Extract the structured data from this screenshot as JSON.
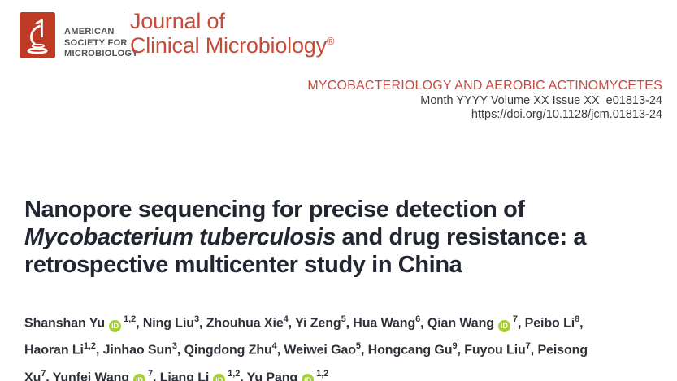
{
  "masthead": {
    "society_lines": [
      "AMERICAN",
      "SOCIETY FOR",
      "MICROBIOLOGY"
    ],
    "journal_line1": "Journal of",
    "journal_line2": "Clinical Microbiology",
    "registered_mark": "®",
    "logo_icon": "microscope-icon",
    "brand_red": "#bf3a24",
    "journal_red": "#c64b38"
  },
  "issue": {
    "section": "MYCOBACTERIOLOGY AND AEROBIC ACTINOMYCETES",
    "citation": "Month YYYY Volume XX Issue XX  e01813-24",
    "doi": "https://doi.org/10.1128/jcm.01813-24",
    "section_red": "#c64b40"
  },
  "article": {
    "title_lines": [
      [
        {
          "text": "Nanopore sequencing for precise detection of",
          "italic": false
        }
      ],
      [
        {
          "text": "Mycobacterium tuberculosis",
          "italic": true
        },
        {
          "text": " and drug resistance: a",
          "italic": false
        }
      ],
      [
        {
          "text": "retrospective multicenter study in China",
          "italic": false
        }
      ]
    ],
    "orcid_icon_label": "iD",
    "orcid_green": "#a6ce39",
    "author_lines": [
      [
        {
          "name": "Shanshan Yu",
          "orcid": true,
          "sup": "1,2",
          "sep": ", "
        },
        {
          "name": "Ning Liu",
          "orcid": false,
          "sup": "3",
          "sep": ", "
        },
        {
          "name": "Zhouhua Xie",
          "orcid": false,
          "sup": "4",
          "sep": ", "
        },
        {
          "name": "Yi Zeng",
          "orcid": false,
          "sup": "5",
          "sep": ", "
        },
        {
          "name": "Hua Wang",
          "orcid": false,
          "sup": "6",
          "sep": ", "
        },
        {
          "name": "Qian Wang",
          "orcid": true,
          "sup": "7",
          "sep": ", "
        },
        {
          "name": "Peibo Li",
          "orcid": false,
          "sup": "8",
          "sep": ","
        }
      ],
      [
        {
          "name": "Haoran Li",
          "orcid": false,
          "sup": "1,2",
          "sep": ", "
        },
        {
          "name": "Jinhao Sun",
          "orcid": false,
          "sup": "3",
          "sep": ", "
        },
        {
          "name": "Qingdong Zhu",
          "orcid": false,
          "sup": "4",
          "sep": ", "
        },
        {
          "name": "Weiwei Gao",
          "orcid": false,
          "sup": "5",
          "sep": ", "
        },
        {
          "name": "Hongcang Gu",
          "orcid": false,
          "sup": "9",
          "sep": ", "
        },
        {
          "name": "Fuyou Liu",
          "orcid": false,
          "sup": "7",
          "sep": ", "
        },
        {
          "name": "Peisong",
          "orcid": false,
          "sup": "",
          "sep": ""
        }
      ],
      [
        {
          "name": "Xu",
          "orcid": false,
          "sup": "7",
          "sep": ", "
        },
        {
          "name": "Yunfei Wang",
          "orcid": true,
          "sup": "7",
          "sep": ", "
        },
        {
          "name": "Liang Li",
          "orcid": true,
          "sup": "1,2",
          "sep": ", "
        },
        {
          "name": "Yu Pang",
          "orcid": true,
          "sup": "1,2",
          "sep": ""
        }
      ]
    ]
  }
}
